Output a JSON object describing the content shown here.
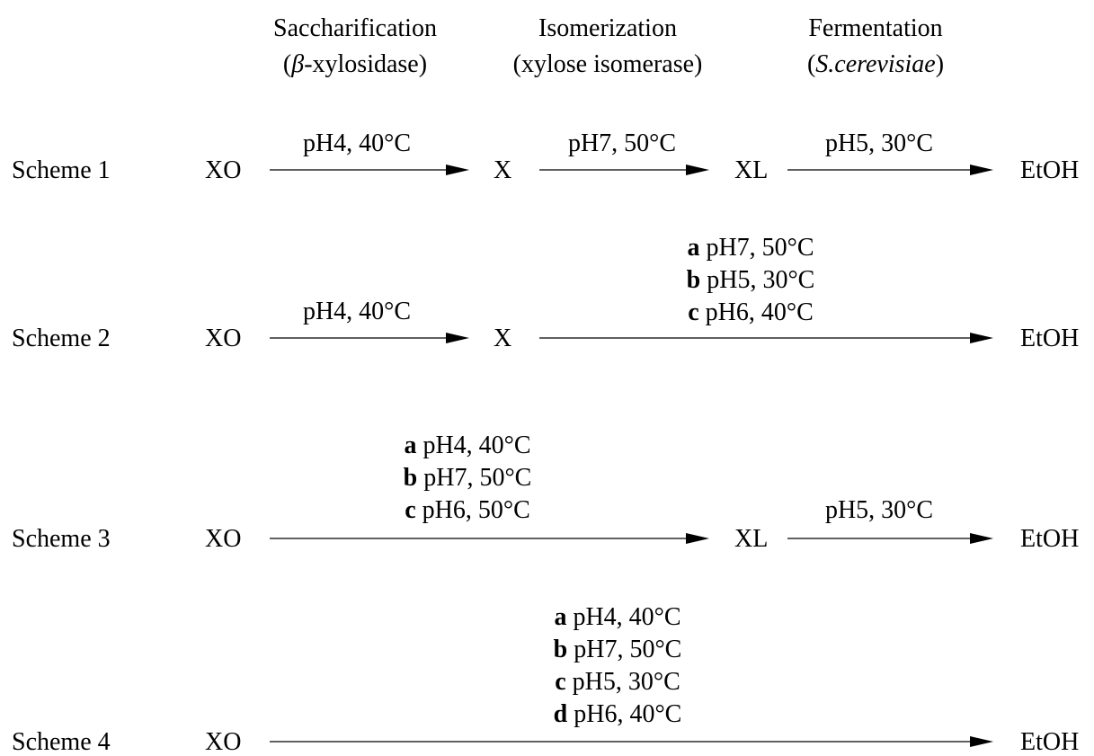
{
  "headers": {
    "saccharification": {
      "title": "Saccharification",
      "enzyme": "β",
      "enzyme_rest": "-xylosidase"
    },
    "isomerization": {
      "title": "Isomerization",
      "enzyme": "(xylose isomerase)"
    },
    "fermentation": {
      "title": "Fermentation",
      "organism": "S.cerevisiae"
    }
  },
  "paren_open": "(",
  "paren_close": ")",
  "compounds": {
    "xo": "XO",
    "x": "X",
    "xl": "XL",
    "etoh": "EtOH"
  },
  "schemes": {
    "s1": {
      "label": "Scheme 1",
      "step1": "pH4, 40°C",
      "step2": "pH7, 50°C",
      "step3": "pH5, 30°C"
    },
    "s2": {
      "label": "Scheme 2",
      "step1": "pH4, 40°C",
      "combined": [
        {
          "key": "a",
          "cond": " pH7, 50°C"
        },
        {
          "key": "b",
          "cond": " pH5, 30°C"
        },
        {
          "key": "c",
          "cond": " pH6, 40°C"
        }
      ]
    },
    "s3": {
      "label": "Scheme 3",
      "combined": [
        {
          "key": "a",
          "cond": " pH4, 40°C"
        },
        {
          "key": "b",
          "cond": " pH7, 50°C"
        },
        {
          "key": "c",
          "cond": " pH6, 50°C"
        }
      ],
      "step3": "pH5, 30°C"
    },
    "s4": {
      "label": "Scheme 4",
      "combined": [
        {
          "key": "a",
          "cond": " pH4, 40°C"
        },
        {
          "key": "b",
          "cond": " pH7, 50°C"
        },
        {
          "key": "c",
          "cond": " pH5, 30°C"
        },
        {
          "key": "d",
          "cond": " pH6, 40°C"
        }
      ]
    }
  }
}
